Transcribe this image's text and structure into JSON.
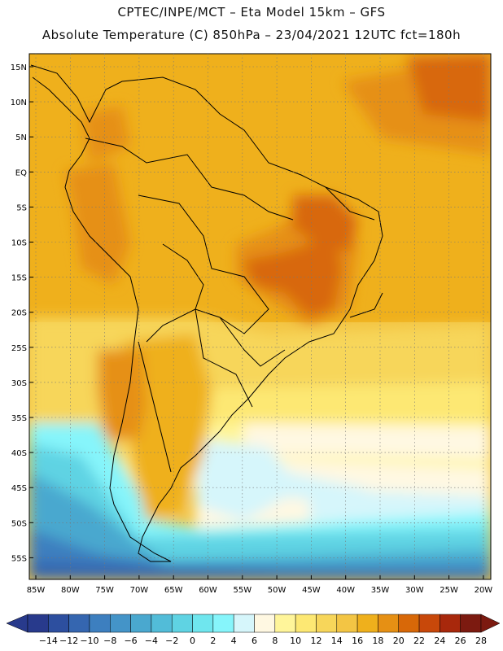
{
  "header": {
    "line1": "CPTEC/INPE/MCT –  Eta Model 15km – GFS",
    "line2": "Absolute Temperature (C) 850hPa – 23/04/2021 12UTC fct=180h"
  },
  "map": {
    "lat_labels": [
      "15N",
      "10N",
      "5N",
      "EQ",
      "5S",
      "10S",
      "15S",
      "20S",
      "25S",
      "30S",
      "35S",
      "40S",
      "45S",
      "50S",
      "55S"
    ],
    "lon_labels": [
      "85W",
      "80W",
      "75W",
      "70W",
      "65W",
      "60W",
      "55W",
      "50W",
      "45W",
      "40W",
      "35W",
      "30W",
      "25W",
      "20W"
    ]
  },
  "colorbar": {
    "labels": [
      "-14",
      "-12",
      "-10",
      "-8",
      "-6",
      "-4",
      "-2",
      "0",
      "2",
      "4",
      "6",
      "8",
      "10",
      "12",
      "14",
      "16",
      "18",
      "20",
      "22",
      "24",
      "26",
      "28"
    ],
    "colors": [
      "#283a8c",
      "#2d4f9f",
      "#3566b0",
      "#3d7fbf",
      "#4494c8",
      "#4aa8cf",
      "#52bcd8",
      "#5fd3e3",
      "#6fe6ee",
      "#86f5fb",
      "#d6f6fb",
      "#fff8e2",
      "#fff59a",
      "#fde873",
      "#f7d65a",
      "#f3c544",
      "#efb01c",
      "#e69014",
      "#d86808",
      "#c8480a",
      "#a8280c",
      "#7c1a10"
    ]
  }
}
